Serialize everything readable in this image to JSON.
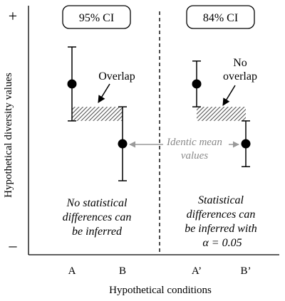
{
  "chart_data": {
    "type": "scatter",
    "xlabel": "Hypothetical conditions",
    "ylabel": "Hypothetical diversity values",
    "y_ticks": {
      "top": "+",
      "bottom": "–"
    },
    "categories": [
      "A",
      "B",
      "A’",
      "B’"
    ],
    "panels": [
      {
        "label": "95% CI",
        "points": [
          {
            "category": "A",
            "mean": 5.5,
            "ci_low": 3.4,
            "ci_high": 7.6
          },
          {
            "category": "B",
            "mean": 2.1,
            "ci_low": 0.0,
            "ci_high": 4.2
          }
        ],
        "overlap_label": "Overlap",
        "conclusion_lines": [
          "No statistical",
          "differences can",
          "be inferred"
        ]
      },
      {
        "label": "84% CI",
        "points": [
          {
            "category": "A’",
            "mean": 5.5,
            "ci_low": 4.2,
            "ci_high": 6.8
          },
          {
            "category": "B’",
            "mean": 2.1,
            "ci_low": 0.8,
            "ci_high": 3.4
          }
        ],
        "overlap_label_lines": [
          "No",
          "overlap"
        ],
        "conclusion_lines": [
          "Statistical",
          "differences can",
          "be inferred with"
        ],
        "alpha_label": "α = 0.05"
      }
    ],
    "annotation_lines": [
      "Identic mean",
      "values"
    ],
    "colors": {
      "ink": "#000000",
      "hatch": "#555555",
      "arrow_gray": "#9a9a9a",
      "annotation_gray": "#8a8a8a"
    }
  }
}
